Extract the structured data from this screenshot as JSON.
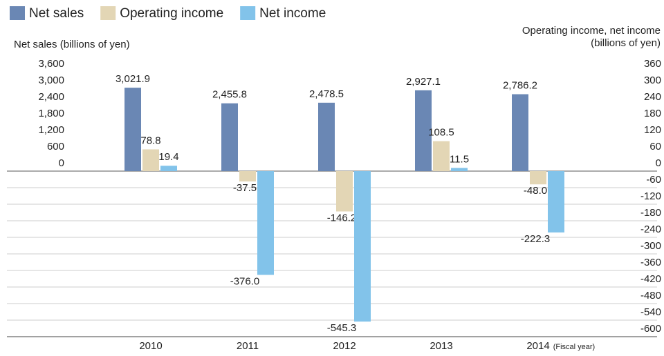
{
  "chart_data": {
    "type": "bar",
    "categories": [
      "2010",
      "2011",
      "2012",
      "2013",
      "2014"
    ],
    "x_note": "(Fiscal year)",
    "y_label": "Net sales (billions of yen)",
    "y2_label": [
      "Operating income, net income",
      "(billions of yen)"
    ],
    "ylim": [
      -6000,
      3600
    ],
    "yticks": [
      0,
      600,
      {
        "value": 1200,
        "label": "1,200"
      },
      {
        "value": 1800,
        "label": "1,800"
      },
      {
        "value": 2400,
        "label": "2,400"
      },
      {
        "value": 3000,
        "label": "3,000"
      },
      {
        "value": 3600,
        "label": "3,600"
      }
    ],
    "y2lim": [
      -600,
      360
    ],
    "y2ticks": [
      360,
      300,
      240,
      180,
      120,
      60,
      0,
      -60,
      -120,
      -180,
      -240,
      -300,
      -360,
      -420,
      -480,
      -540,
      -600
    ],
    "series": [
      {
        "name": "Net sales",
        "color": "#6a87b4",
        "values": [
          3021.9,
          2455.8,
          2478.5,
          2927.1,
          2786.2
        ],
        "value_labels": [
          "3,021.9",
          "2,455.8",
          "2,478.5",
          "2,927.1",
          "2,786.2"
        ]
      },
      {
        "name": "Operating income",
        "color": "#e3d6b5",
        "axis": "y2",
        "values": [
          78.8,
          -37.5,
          -146.2,
          108.5,
          -48.0
        ],
        "value_labels": [
          "78.8",
          "-37.5",
          "-146.2",
          "108.5",
          "-48.0"
        ]
      },
      {
        "name": "Net income",
        "color": "#82c3ea",
        "axis": "y2",
        "values": [
          19.4,
          -376.0,
          -545.3,
          11.5,
          -222.3
        ],
        "value_labels": [
          "19.4",
          "-376.0",
          "-545.3",
          "11.5",
          "-222.3"
        ]
      }
    ]
  }
}
